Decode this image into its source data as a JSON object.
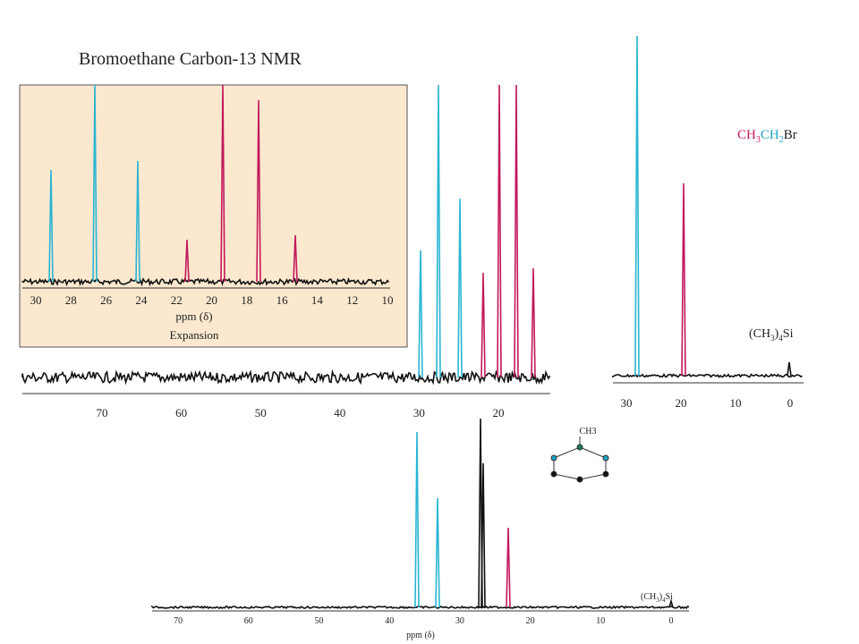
{
  "title": "Bromoethane Carbon-13 NMR",
  "expansion": {
    "ticks": [
      30,
      28,
      26,
      24,
      22,
      20,
      18,
      16,
      14,
      12,
      10
    ],
    "axis_label": "ppm (δ)",
    "caption": "Expansion"
  },
  "main": {
    "ticks": [
      70,
      60,
      50,
      40,
      30,
      20
    ]
  },
  "right": {
    "ticks": [
      30,
      20,
      10,
      0
    ],
    "compound": [
      "CH",
      "3",
      "CH",
      "2",
      "Br"
    ],
    "reference": [
      "(CH",
      "3",
      ")",
      "4",
      "Si"
    ]
  },
  "bottom": {
    "ticks": [
      70,
      60,
      50,
      40,
      30,
      20,
      10,
      0
    ],
    "axis_label": "ppm (δ)",
    "reference": [
      "(CH",
      "3",
      ")",
      "4",
      "Si"
    ],
    "substituent": "CH3"
  }
}
